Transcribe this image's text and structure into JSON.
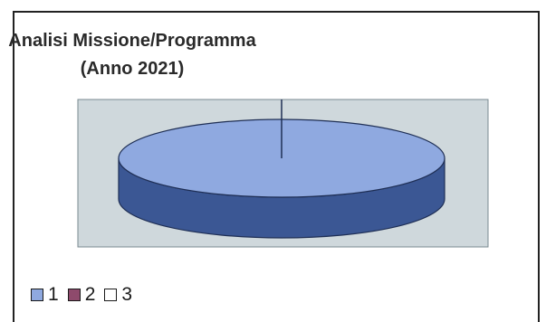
{
  "chart_data": {
    "type": "pie",
    "style": "3d",
    "title_lines": [
      "Analisi Missione/Programma",
      "(Anno 2021)"
    ],
    "categories": [
      "1",
      "2",
      "3"
    ],
    "values": [
      100,
      0,
      0
    ],
    "legend_position": "bottom-left",
    "colors": {
      "1": "#8fa9e0",
      "2": "#8e4a6c",
      "3": "#ffffff",
      "plot_area": "#cfd8dc",
      "pie_side": "#3b5794"
    }
  }
}
